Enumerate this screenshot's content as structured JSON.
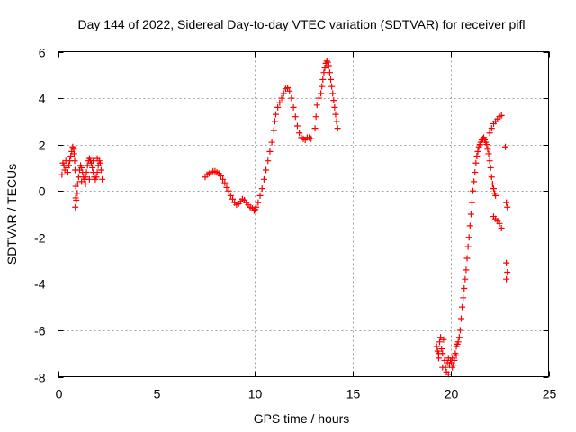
{
  "chart_data": {
    "type": "scatter",
    "title": "Day 144 of 2022, Sidereal Day-to-day VTEC variation (SDTVAR) for receiver pifl",
    "xlabel": "GPS time / hours",
    "ylabel": "SDTVAR / TECUs",
    "xlim": [
      0,
      25
    ],
    "ylim": [
      -8,
      6
    ],
    "xticks": [
      0,
      5,
      10,
      15,
      20,
      25
    ],
    "yticks": [
      -8,
      -6,
      -4,
      -2,
      0,
      2,
      4,
      6
    ],
    "grid": true,
    "marker": "+",
    "color": "#ff0000",
    "series": [
      {
        "name": "SDTVAR",
        "points": [
          [
            0.2,
            0.7
          ],
          [
            0.25,
            1.2
          ],
          [
            0.3,
            1.1
          ],
          [
            0.35,
            0.9
          ],
          [
            0.4,
            1.3
          ],
          [
            0.45,
            1.0
          ],
          [
            0.5,
            0.8
          ],
          [
            0.55,
            1.1
          ],
          [
            0.6,
            1.3
          ],
          [
            0.65,
            1.5
          ],
          [
            0.7,
            1.7
          ],
          [
            0.75,
            1.9
          ],
          [
            0.8,
            1.8
          ],
          [
            0.82,
            1.6
          ],
          [
            0.85,
            1.3
          ],
          [
            0.87,
            0.9
          ],
          [
            0.9,
            0.2
          ],
          [
            0.9,
            -0.3
          ],
          [
            0.88,
            -0.7
          ],
          [
            0.93,
            -0.4
          ],
          [
            0.98,
            -0.1
          ],
          [
            1.0,
            0.3
          ],
          [
            1.05,
            0.6
          ],
          [
            1.1,
            0.9
          ],
          [
            1.15,
            1.1
          ],
          [
            1.2,
            1.0
          ],
          [
            1.25,
            0.8
          ],
          [
            1.3,
            0.6
          ],
          [
            1.35,
            0.5
          ],
          [
            1.4,
            0.6
          ],
          [
            1.45,
            0.8
          ],
          [
            1.5,
            1.1
          ],
          [
            1.55,
            1.3
          ],
          [
            1.6,
            1.4
          ],
          [
            1.65,
            1.3
          ],
          [
            1.7,
            1.2
          ],
          [
            1.75,
            1.0
          ],
          [
            1.8,
            0.8
          ],
          [
            1.85,
            0.6
          ],
          [
            1.9,
            0.5
          ],
          [
            1.95,
            0.6
          ],
          [
            2.0,
            0.8
          ],
          [
            2.05,
            1.1
          ],
          [
            2.1,
            1.3
          ],
          [
            2.15,
            1.2
          ],
          [
            2.2,
            0.9
          ],
          [
            2.25,
            0.5
          ],
          [
            1.2,
            0.4
          ],
          [
            1.4,
            0.3
          ],
          [
            1.6,
            0.5
          ],
          [
            1.8,
            1.3
          ],
          [
            2.0,
            1.4
          ],
          [
            7.5,
            0.6
          ],
          [
            7.6,
            0.7
          ],
          [
            7.7,
            0.75
          ],
          [
            7.8,
            0.8
          ],
          [
            7.9,
            0.85
          ],
          [
            8.0,
            0.85
          ],
          [
            8.1,
            0.8
          ],
          [
            8.2,
            0.75
          ],
          [
            8.3,
            0.65
          ],
          [
            8.4,
            0.5
          ],
          [
            8.5,
            0.35
          ],
          [
            8.6,
            0.15
          ],
          [
            8.7,
            0.0
          ],
          [
            8.8,
            -0.2
          ],
          [
            8.9,
            -0.35
          ],
          [
            9.0,
            -0.5
          ],
          [
            9.1,
            -0.6
          ],
          [
            9.2,
            -0.55
          ],
          [
            9.3,
            -0.45
          ],
          [
            9.4,
            -0.35
          ],
          [
            9.5,
            -0.4
          ],
          [
            9.6,
            -0.5
          ],
          [
            9.7,
            -0.6
          ],
          [
            9.8,
            -0.7
          ],
          [
            9.9,
            -0.75
          ],
          [
            10.0,
            -0.85
          ],
          [
            10.05,
            -0.8
          ],
          [
            10.1,
            -0.7
          ],
          [
            10.2,
            -0.5
          ],
          [
            10.3,
            -0.2
          ],
          [
            10.4,
            0.1
          ],
          [
            10.5,
            0.5
          ],
          [
            10.6,
            0.9
          ],
          [
            10.7,
            1.3
          ],
          [
            10.8,
            1.7
          ],
          [
            10.9,
            2.1
          ],
          [
            11.0,
            2.6
          ],
          [
            11.05,
            3.0
          ],
          [
            11.1,
            3.3
          ],
          [
            11.2,
            3.6
          ],
          [
            11.3,
            3.8
          ],
          [
            11.4,
            4.0
          ],
          [
            11.5,
            4.2
          ],
          [
            11.6,
            4.4
          ],
          [
            11.7,
            4.45
          ],
          [
            11.8,
            4.3
          ],
          [
            11.9,
            4.0
          ],
          [
            12.0,
            3.6
          ],
          [
            12.1,
            3.2
          ],
          [
            12.2,
            2.8
          ],
          [
            12.3,
            2.5
          ],
          [
            12.4,
            2.3
          ],
          [
            12.5,
            2.25
          ],
          [
            12.6,
            2.2
          ],
          [
            12.7,
            2.3
          ],
          [
            12.8,
            2.3
          ],
          [
            12.9,
            2.25
          ],
          [
            13.1,
            2.7
          ],
          [
            13.15,
            3.2
          ],
          [
            13.2,
            3.7
          ],
          [
            13.3,
            4.0
          ],
          [
            13.4,
            4.2
          ],
          [
            13.45,
            4.5
          ],
          [
            13.5,
            4.8
          ],
          [
            13.55,
            5.1
          ],
          [
            13.6,
            5.3
          ],
          [
            13.65,
            5.5
          ],
          [
            13.7,
            5.6
          ],
          [
            13.75,
            5.55
          ],
          [
            13.8,
            5.4
          ],
          [
            13.85,
            5.1
          ],
          [
            13.9,
            4.8
          ],
          [
            13.95,
            4.5
          ],
          [
            14.0,
            4.2
          ],
          [
            14.05,
            3.9
          ],
          [
            14.1,
            3.6
          ],
          [
            14.15,
            3.3
          ],
          [
            14.2,
            3.0
          ],
          [
            14.25,
            2.7
          ],
          [
            19.3,
            -6.7
          ],
          [
            19.35,
            -6.9
          ],
          [
            19.4,
            -7.2
          ],
          [
            19.45,
            -6.5
          ],
          [
            19.5,
            -6.3
          ],
          [
            19.55,
            -6.8
          ],
          [
            19.6,
            -7.0
          ],
          [
            19.65,
            -6.4
          ],
          [
            19.7,
            -7.3
          ],
          [
            19.75,
            -7.6
          ],
          [
            19.8,
            -7.8
          ],
          [
            19.85,
            -7.4
          ],
          [
            19.9,
            -7.2
          ],
          [
            19.95,
            -7.5
          ],
          [
            20.0,
            -7.3
          ],
          [
            20.05,
            -7.4
          ],
          [
            20.1,
            -7.6
          ],
          [
            20.15,
            -7.5
          ],
          [
            20.2,
            -7.3
          ],
          [
            20.25,
            -7.0
          ],
          [
            20.3,
            -6.7
          ],
          [
            20.35,
            -6.6
          ],
          [
            20.4,
            -6.5
          ],
          [
            20.45,
            -6.3
          ],
          [
            20.5,
            -6.0
          ],
          [
            20.55,
            -5.5
          ],
          [
            20.6,
            -5.0
          ],
          [
            20.65,
            -4.6
          ],
          [
            20.7,
            -4.2
          ],
          [
            20.75,
            -3.8
          ],
          [
            20.8,
            -3.4
          ],
          [
            20.85,
            -2.9
          ],
          [
            20.9,
            -2.4
          ],
          [
            20.95,
            -2.0
          ],
          [
            21.0,
            -1.5
          ],
          [
            21.05,
            -1.0
          ],
          [
            21.1,
            -0.5
          ],
          [
            21.15,
            0.0
          ],
          [
            21.2,
            0.4
          ],
          [
            21.25,
            0.8
          ],
          [
            21.3,
            1.2
          ],
          [
            21.35,
            1.5
          ],
          [
            21.4,
            1.7
          ],
          [
            21.45,
            1.9
          ],
          [
            21.5,
            2.0
          ],
          [
            21.55,
            2.1
          ],
          [
            21.6,
            2.2
          ],
          [
            21.65,
            2.25
          ],
          [
            21.7,
            2.3
          ],
          [
            21.75,
            2.2
          ],
          [
            21.8,
            2.1
          ],
          [
            21.85,
            2.0
          ],
          [
            21.9,
            1.8
          ],
          [
            21.95,
            1.6
          ],
          [
            22.0,
            1.3
          ],
          [
            22.05,
            1.0
          ],
          [
            22.1,
            0.6
          ],
          [
            22.15,
            0.3
          ],
          [
            22.2,
            0.1
          ],
          [
            22.25,
            -0.1
          ],
          [
            22.3,
            -0.2
          ],
          [
            22.0,
            2.5
          ],
          [
            22.1,
            2.7
          ],
          [
            22.2,
            2.9
          ],
          [
            22.3,
            3.0
          ],
          [
            22.4,
            3.1
          ],
          [
            22.5,
            3.2
          ],
          [
            22.6,
            3.25
          ],
          [
            22.2,
            -1.1
          ],
          [
            22.3,
            -1.2
          ],
          [
            22.4,
            -1.3
          ],
          [
            22.5,
            -1.4
          ],
          [
            22.6,
            -1.6
          ],
          [
            22.8,
            1.9
          ],
          [
            22.85,
            -0.5
          ],
          [
            22.9,
            -0.7
          ],
          [
            22.85,
            -3.1
          ],
          [
            22.9,
            -3.5
          ],
          [
            22.85,
            -3.8
          ],
          [
            19.4,
            -7.0
          ],
          [
            19.6,
            -7.6
          ],
          [
            19.9,
            -7.9
          ],
          [
            20.1,
            -7.2
          ],
          [
            20.3,
            -7.1
          ]
        ]
      }
    ]
  }
}
